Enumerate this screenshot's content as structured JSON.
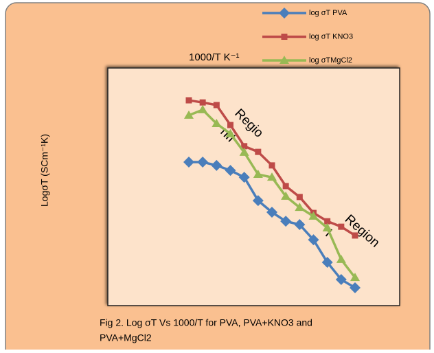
{
  "chart_data": {
    "type": "line",
    "x_label": "1000/T  K⁻¹",
    "y_label": "LogσT (SCm⁻¹K)",
    "caption": [
      "Fig 2. Log σT Vs 1000/T for PVA, PVA+KNO3 and",
      "PVA+MgCl2"
    ],
    "annotations": [
      "Regio",
      "nII",
      "Region",
      "I"
    ],
    "categories": [
      null,
      null,
      null,
      null,
      null,
      null,
      null,
      null,
      null,
      null,
      null,
      null,
      null
    ],
    "ylim": [
      0,
      100
    ],
    "legend": "top-right",
    "series": [
      {
        "name": "log σT PVA",
        "color": "#4a7ebb",
        "marker": "diamond",
        "values": [
          60.4,
          60.4,
          59.0,
          56.9,
          54.0,
          44.2,
          39.3,
          35.5,
          34.1,
          27.7,
          18.2,
          11.0,
          7.5
        ]
      },
      {
        "name": "log σT KNO3",
        "color": "#be4b48",
        "marker": "square",
        "values": [
          86.4,
          85.5,
          84.4,
          76.0,
          67.1,
          64.7,
          59.0,
          50.3,
          45.7,
          39.0,
          35.5,
          33.2,
          29.5
        ]
      },
      {
        "name": "log  σTMgCl2",
        "color": "#98b954",
        "marker": "triangle",
        "values": [
          80.1,
          82.4,
          76.6,
          72.3,
          64.5,
          55.2,
          54.0,
          46.0,
          41.3,
          37.6,
          32.7,
          19.4,
          11.8
        ]
      }
    ]
  }
}
